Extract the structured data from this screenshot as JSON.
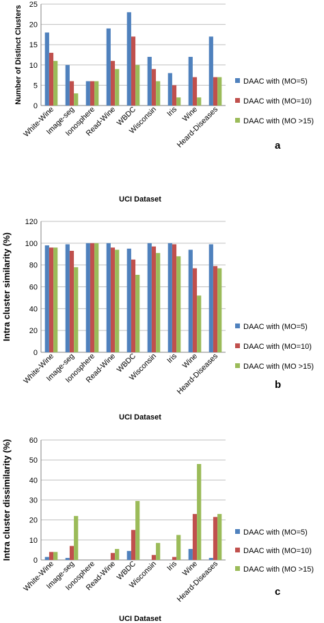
{
  "colors": {
    "s0": "#4f81bd",
    "s1": "#c0504d",
    "s2": "#9bbb59"
  },
  "chart_data": [
    {
      "type": "bar",
      "panel_label": "a",
      "ylabel": "Number of Distinct Clusters",
      "xlabel": "UCI Dataset",
      "ylim": [
        0,
        25
      ],
      "yticks": [
        "0",
        "5",
        "10",
        "15",
        "20",
        "25"
      ],
      "grid": true,
      "legend_position": "right",
      "categories": [
        "White-Wine",
        "Image-seg",
        "Ionosphere",
        "Read-Wine",
        "WBDC",
        "Wisconsin",
        "Iris",
        "Wine",
        "Heard-Diseases"
      ],
      "series": [
        {
          "name": "DAAC  with  (MO=5)",
          "values": [
            18,
            10,
            6,
            19,
            23,
            12,
            8,
            12,
            17
          ]
        },
        {
          "name": "DAAC with  (MO=10)",
          "values": [
            13,
            6,
            6,
            11,
            17,
            9,
            5,
            7,
            7
          ]
        },
        {
          "name": "DAAC with (MO >15)",
          "values": [
            11,
            3,
            6,
            9,
            10,
            6,
            2,
            2,
            7
          ]
        }
      ]
    },
    {
      "type": "bar",
      "panel_label": "b",
      "ylabel": "Intra cluster similarity (%)",
      "xlabel": "UCI Dataset",
      "ylim": [
        0,
        120
      ],
      "yticks": [
        "0",
        "20",
        "40",
        "60",
        "80",
        "100",
        "120"
      ],
      "grid": true,
      "legend_position": "right",
      "categories": [
        "White-Wine",
        "Image-seg",
        "Ionosphere",
        "Read-Wine",
        "WBDC",
        "Wisconsin",
        "Iris",
        "Wine",
        "Heard-Diseases"
      ],
      "series": [
        {
          "name": "DAAC  with  (MO=5)",
          "values": [
            98,
            99,
            100,
            100,
            95,
            100,
            100,
            94,
            99
          ]
        },
        {
          "name": "DAAC with  (MO=10)",
          "values": [
            96,
            93,
            100,
            96,
            85,
            97,
            99,
            77,
            79
          ]
        },
        {
          "name": "DAAC with (MO >15)",
          "values": [
            96,
            78,
            100,
            94,
            71,
            91,
            88,
            52,
            77
          ]
        }
      ]
    },
    {
      "type": "bar",
      "panel_label": "c",
      "ylabel": "Intra cluster dissimilarity (%)",
      "xlabel": "UCI Dataset",
      "ylim": [
        0,
        60
      ],
      "yticks": [
        "0",
        "10",
        "20",
        "30",
        "40",
        "50",
        "60"
      ],
      "grid": true,
      "legend_position": "right",
      "categories": [
        "White-Wine",
        "Image-seg",
        "Ionosphere",
        "Read-Wine",
        "WBDC",
        "Wisconsin",
        "Iris",
        "Wine",
        "Heard-Diseases"
      ],
      "series": [
        {
          "name": "DAAC  with  (MO=5)",
          "values": [
            1.5,
            1,
            0,
            0,
            4.5,
            0,
            0,
            5.5,
            1
          ]
        },
        {
          "name": "DAAC with  (MO=10)",
          "values": [
            4,
            7,
            0,
            3.5,
            15,
            2.5,
            1.5,
            23,
            21.5
          ]
        },
        {
          "name": "DAAC with (MO >15)",
          "values": [
            4,
            22,
            0,
            5.5,
            29.5,
            8.5,
            12.5,
            48,
            23
          ]
        }
      ]
    }
  ]
}
